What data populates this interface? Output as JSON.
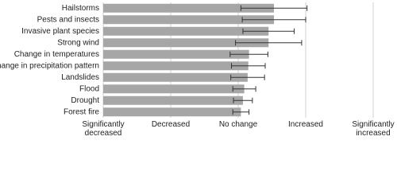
{
  "chart_data": {
    "type": "bar",
    "orientation": "horizontal",
    "categories": [
      "Hailstorms",
      "Pests and insects",
      "Invasive plant species",
      "Strong wind",
      "Change in temperatures",
      "Change in precipitation pattern",
      "Landslides",
      "Flood",
      "Drought",
      "Forest fire"
    ],
    "values": [
      3.53,
      3.53,
      3.45,
      3.45,
      3.16,
      3.15,
      3.14,
      3.09,
      3.07,
      3.04
    ],
    "errors": [
      0.49,
      0.47,
      0.38,
      0.49,
      0.28,
      0.25,
      0.25,
      0.17,
      0.14,
      0.12
    ],
    "color": "#a6a6a6",
    "error_color": "#333333",
    "xlim": [
      1,
      5
    ],
    "xticks": [
      {
        "value": 1,
        "label": "Significantly decreased"
      },
      {
        "value": 2,
        "label": "Decreased"
      },
      {
        "value": 3,
        "label": "No change"
      },
      {
        "value": 4,
        "label": "Increased"
      },
      {
        "value": 5,
        "label": "Significantly increased"
      }
    ],
    "grid": true
  }
}
